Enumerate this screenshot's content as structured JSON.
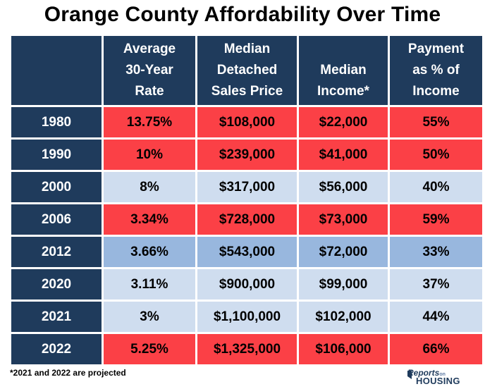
{
  "title": "Orange County Affordability Over Time",
  "headers": {
    "year": "",
    "rate": [
      "Average",
      "30-Year",
      "Rate"
    ],
    "price": [
      "Median",
      "Detached",
      "Sales Price"
    ],
    "income": [
      "Median",
      "Income*"
    ],
    "payment": [
      "Payment",
      "as % of",
      "Income"
    ]
  },
  "rows": [
    {
      "year": "1980",
      "rate": "13.75%",
      "price": "$108,000",
      "income": "$22,000",
      "payment": "55%",
      "color": "red"
    },
    {
      "year": "1990",
      "rate": "10%",
      "price": "$239,000",
      "income": "$41,000",
      "payment": "50%",
      "color": "red"
    },
    {
      "year": "2000",
      "rate": "8%",
      "price": "$317,000",
      "income": "$56,000",
      "payment": "40%",
      "color": "light"
    },
    {
      "year": "2006",
      "rate": "3.34%",
      "price": "$728,000",
      "income": "$73,000",
      "payment": "59%",
      "color": "red"
    },
    {
      "year": "2012",
      "rate": "3.66%",
      "price": "$543,000",
      "income": "$72,000",
      "payment": "33%",
      "color": "mid"
    },
    {
      "year": "2020",
      "rate": "3.11%",
      "price": "$900,000",
      "income": "$99,000",
      "payment": "37%",
      "color": "light"
    },
    {
      "year": "2021",
      "rate": "3%",
      "price": "$1,100,000",
      "income": "$102,000",
      "payment": "44%",
      "color": "light"
    },
    {
      "year": "2022",
      "rate": "5.25%",
      "price": "$1,325,000",
      "income": "$106,000",
      "payment": "66%",
      "color": "red"
    }
  ],
  "footnote": "*2021 and 2022 are projected",
  "logo": {
    "line1": "Reports",
    "line1_small": "on",
    "line2": "HOUSING"
  },
  "colors": {
    "header": "#1f3b5c",
    "red": "#fb4046",
    "light": "#cfddef",
    "mid": "#98b7de"
  }
}
